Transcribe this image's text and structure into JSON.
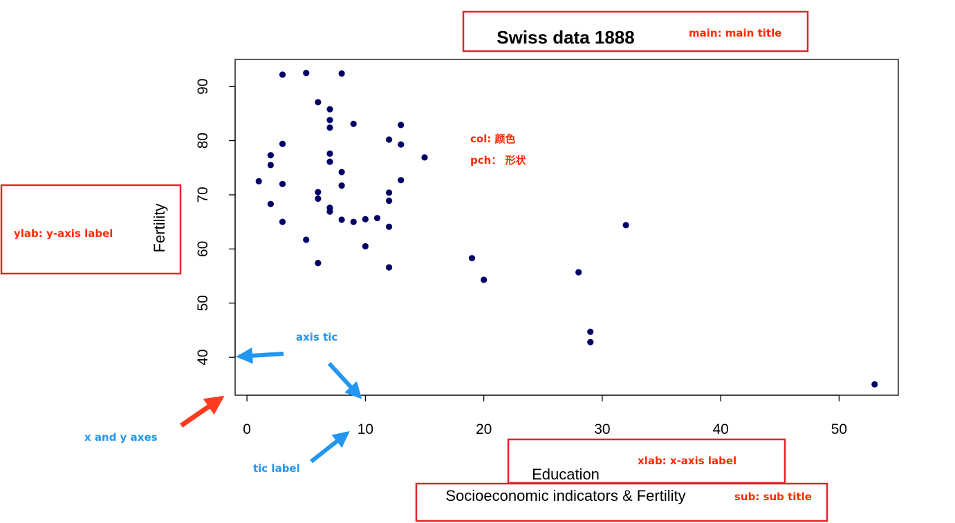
{
  "chart_data": {
    "type": "scatter",
    "title": "Swiss data 1888",
    "subtitle": "Socioeconomic indicators & Fertility",
    "xlabel": "Education",
    "ylabel": "Fertility",
    "xlim": [
      -1,
      55
    ],
    "ylim": [
      33,
      95
    ],
    "xticks": [
      0,
      10,
      20,
      30,
      40,
      50
    ],
    "yticks": [
      40,
      50,
      60,
      70,
      80,
      90
    ],
    "point_color": "#000066",
    "grid": false,
    "points": [
      [
        3,
        92.2
      ],
      [
        5,
        92.5
      ],
      [
        8,
        92.4
      ],
      [
        6,
        87.1
      ],
      [
        7,
        85.8
      ],
      [
        7,
        83.8
      ],
      [
        7,
        82.4
      ],
      [
        9,
        83.1
      ],
      [
        13,
        82.9
      ],
      [
        12,
        80.2
      ],
      [
        3,
        79.4
      ],
      [
        13,
        79.3
      ],
      [
        2,
        77.3
      ],
      [
        7,
        77.6
      ],
      [
        15,
        76.9
      ],
      [
        7,
        76.1
      ],
      [
        2,
        75.5
      ],
      [
        8,
        74.2
      ],
      [
        1,
        72.5
      ],
      [
        3,
        72.0
      ],
      [
        8,
        71.7
      ],
      [
        13,
        72.7
      ],
      [
        6,
        70.5
      ],
      [
        12,
        70.4
      ],
      [
        6,
        69.3
      ],
      [
        12,
        68.9
      ],
      [
        2,
        68.3
      ],
      [
        7,
        67.6
      ],
      [
        7,
        66.9
      ],
      [
        11,
        65.7
      ],
      [
        10,
        65.5
      ],
      [
        8,
        65.4
      ],
      [
        9,
        65.0
      ],
      [
        3,
        65.0
      ],
      [
        12,
        64.1
      ],
      [
        32,
        64.4
      ],
      [
        5,
        61.7
      ],
      [
        10,
        60.5
      ],
      [
        19,
        58.3
      ],
      [
        6,
        57.4
      ],
      [
        12,
        56.6
      ],
      [
        28,
        55.7
      ],
      [
        20,
        54.3
      ],
      [
        29,
        44.7
      ],
      [
        29,
        42.8
      ],
      [
        53,
        35.0
      ]
    ]
  },
  "annotations": {
    "main": "main: main title",
    "col": "col: 颜色",
    "pch": "pch：  形状",
    "ylab": "ylab: y-axis label",
    "axis_tic": "axis tic",
    "xy_axes": "x and y axes",
    "tic_label": "tic label",
    "xlab": "xlab: x-axis label",
    "sub": "sub: sub title"
  },
  "colors": {
    "box": "#e0262b",
    "red_text": "#ff2a00",
    "blue_text": "#2196f3",
    "blue_arrow": "#2196f3",
    "red_arrow": "#ff3b1f"
  }
}
